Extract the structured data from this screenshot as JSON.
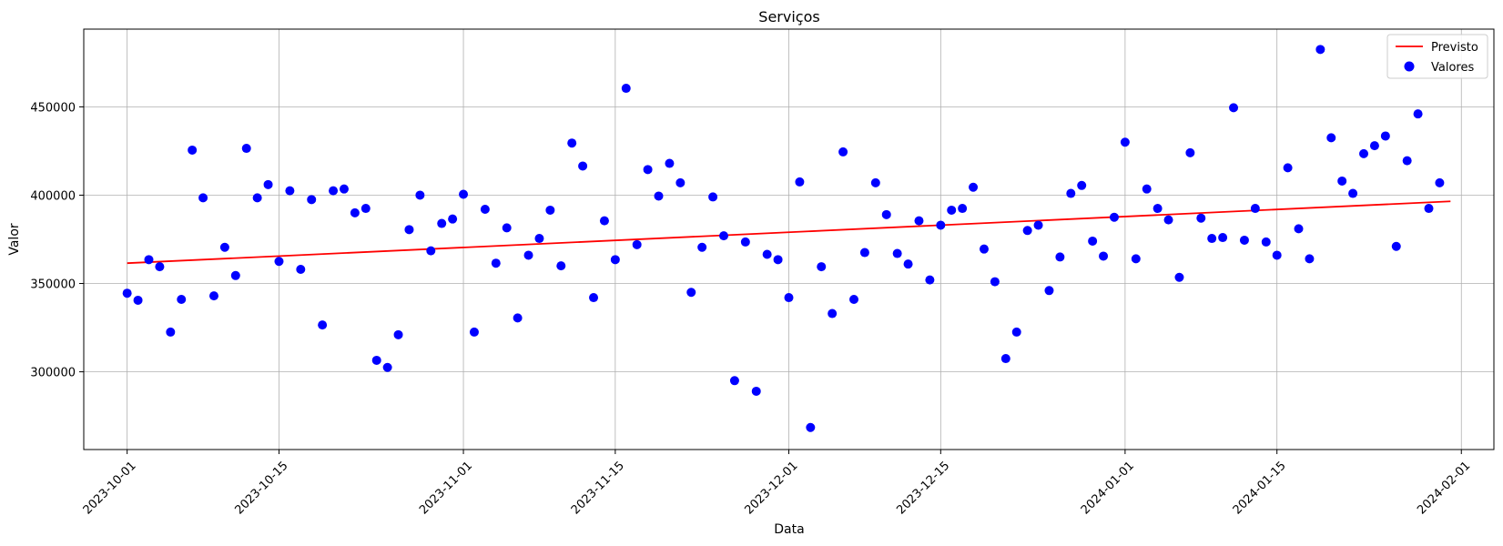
{
  "chart_data": {
    "type": "scatter",
    "title": "Serviços",
    "xlabel": "Data",
    "ylabel": "Valor",
    "grid": true,
    "legend_position": "top-right",
    "xlim": [
      "2023-09-27",
      "2024-02-04"
    ],
    "ylim": [
      256000,
      494000
    ],
    "x_ticks": [
      "2023-10-01",
      "2023-10-15",
      "2023-11-01",
      "2023-11-15",
      "2023-12-01",
      "2023-12-15",
      "2024-01-01",
      "2024-01-15",
      "2024-02-01"
    ],
    "y_ticks": [
      300000,
      350000,
      400000,
      450000
    ],
    "series": [
      {
        "name": "Previsto",
        "kind": "line",
        "color": "#ff0000",
        "x": [
          "2023-10-01",
          "2024-01-31"
        ],
        "y": [
          361500,
          396500
        ]
      },
      {
        "name": "Valores",
        "kind": "scatter",
        "color": "#0000ff",
        "start_date": "2023-10-01",
        "y": [
          344500,
          340500,
          363500,
          359500,
          322500,
          341000,
          425500,
          398500,
          343000,
          370500,
          354500,
          426500,
          398500,
          406000,
          362500,
          402500,
          358000,
          397500,
          326500,
          402500,
          403500,
          390000,
          392500,
          306500,
          302500,
          321000,
          380500,
          400000,
          368500,
          384000,
          386500,
          400500,
          322500,
          392000,
          361500,
          381500,
          330500,
          366000,
          375500,
          391500,
          360000,
          429500,
          416500,
          342000,
          385500,
          363500,
          460500,
          372000,
          414500,
          399500,
          418000,
          407000,
          345000,
          370500,
          399000,
          377000,
          295000,
          373500,
          289000,
          366500,
          363500,
          342000,
          407500,
          268500,
          359500,
          333000,
          424500,
          341000,
          367500,
          407000,
          389000,
          367000,
          361000,
          385500,
          352000,
          383000,
          391500,
          392500,
          404500,
          369500,
          351000,
          307500,
          322500,
          380000,
          383000,
          346000,
          365000,
          401000,
          405500,
          374000,
          365500,
          387500,
          430000,
          364000,
          403500,
          392500,
          386000,
          353500,
          424000,
          387000,
          375500,
          376000,
          449500,
          374500,
          392500,
          373500,
          366000,
          415500,
          381000,
          364000,
          482500,
          432500,
          408000,
          401000,
          423500,
          428000,
          433500,
          371000,
          419500,
          446000,
          392500,
          407000
        ]
      }
    ]
  }
}
